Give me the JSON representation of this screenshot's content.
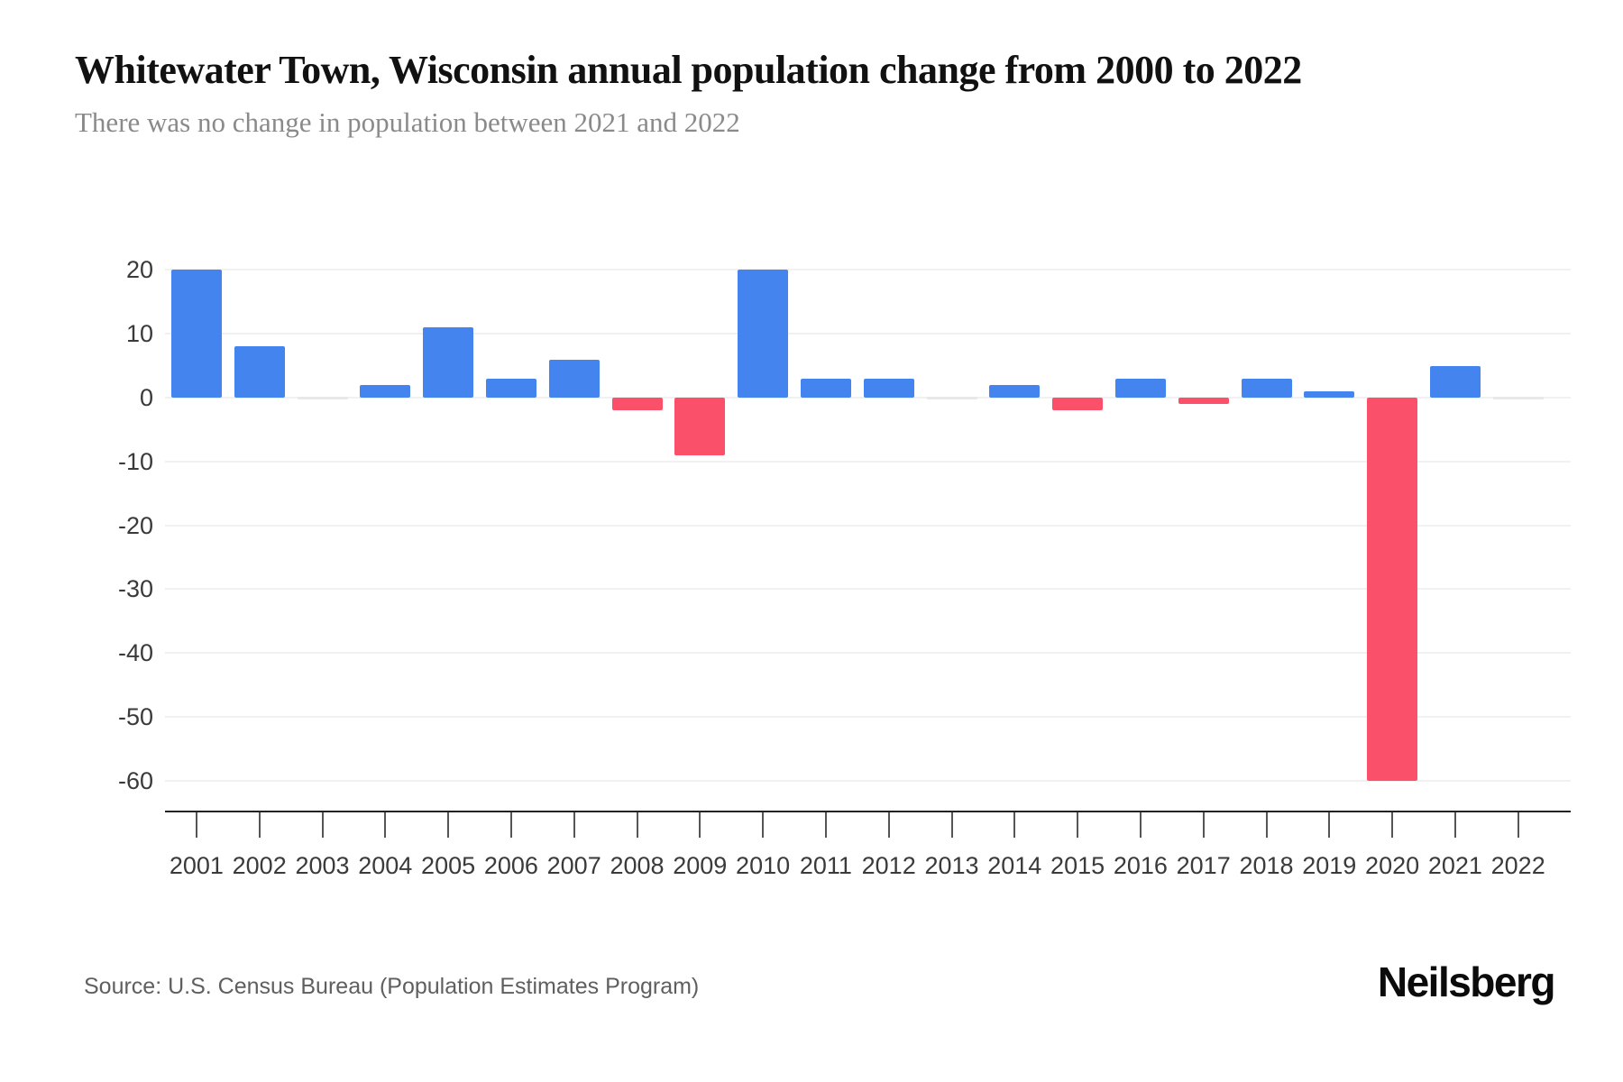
{
  "header": {
    "title": "Whitewater Town, Wisconsin annual population change from 2000 to 2022",
    "subtitle": "There was no change in population between 2021 and 2022"
  },
  "chart_data": {
    "type": "bar",
    "title": "Whitewater Town, Wisconsin annual population change from 2000 to 2022",
    "categories": [
      "2001",
      "2002",
      "2003",
      "2004",
      "2005",
      "2006",
      "2007",
      "2008",
      "2009",
      "2010",
      "2011",
      "2012",
      "2013",
      "2014",
      "2015",
      "2016",
      "2017",
      "2018",
      "2019",
      "2020",
      "2021",
      "2022"
    ],
    "values": [
      20,
      8,
      0,
      2,
      11,
      3,
      6,
      -2,
      -9,
      20,
      3,
      3,
      0,
      2,
      -2,
      3,
      -1,
      3,
      1,
      -60,
      5,
      0
    ],
    "xlabel": "",
    "ylabel": "",
    "yticks": [
      20,
      10,
      0,
      -10,
      -20,
      -30,
      -40,
      -50,
      -60
    ],
    "ylim": [
      -65,
      26
    ],
    "grid": true,
    "legend_position": "none",
    "colors": {
      "positive": "#4484EE",
      "negative": "#FA5069"
    }
  },
  "footer": {
    "source": "Source: U.S. Census Bureau (Population Estimates Program)",
    "brand": "Neilsberg"
  }
}
